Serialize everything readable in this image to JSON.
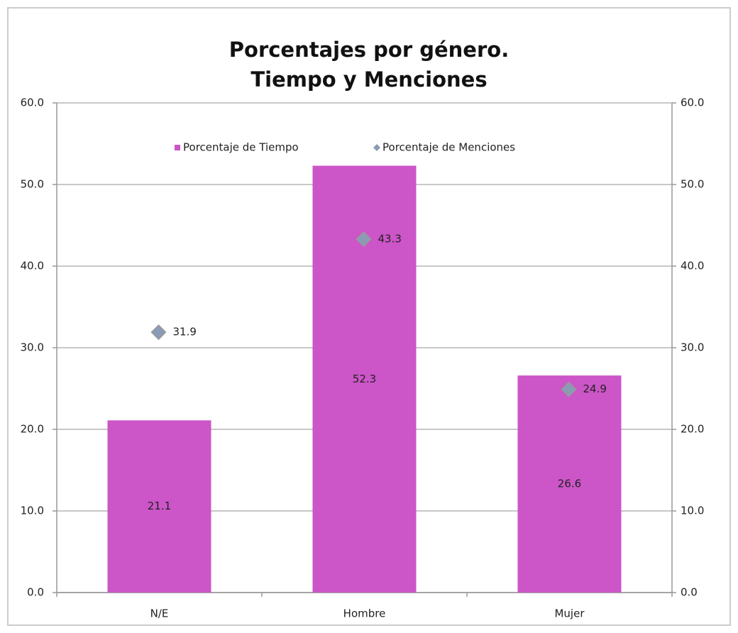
{
  "chart_data": {
    "type": "bar",
    "title": [
      "Porcentajes por género.",
      "Tiempo y Menciones"
    ],
    "categories": [
      "N/E",
      "Hombre",
      "Mujer"
    ],
    "series": [
      {
        "name": "Porcentaje de Tiempo",
        "type": "bar",
        "color": "#cc55c8",
        "values": [
          21.1,
          52.3,
          26.6
        ]
      },
      {
        "name": "Porcentaje de Menciones",
        "type": "scatter",
        "axis": "y2",
        "color": "#8a9bb5",
        "values": [
          31.9,
          43.3,
          24.9
        ]
      }
    ],
    "ylim": [
      0,
      60
    ],
    "yticks": [
      {
        "value": 0,
        "label": "0.0"
      },
      {
        "value": 10,
        "label": "10.0"
      },
      {
        "value": 20,
        "label": "20.0"
      },
      {
        "value": 30,
        "label": "30.0"
      },
      {
        "value": 40,
        "label": "40.0"
      },
      {
        "value": 50,
        "label": "50.0"
      },
      {
        "value": 60,
        "label": "60.0"
      }
    ],
    "y2lim": [
      0,
      60
    ],
    "y2ticks": [
      {
        "value": 0,
        "label": "0.0"
      },
      {
        "value": 10,
        "label": "10.0"
      },
      {
        "value": 20,
        "label": "20.0"
      },
      {
        "value": 30,
        "label": "30.0"
      },
      {
        "value": 40,
        "label": "40.0"
      },
      {
        "value": 50,
        "label": "50.0"
      },
      {
        "value": 60,
        "label": "60.0"
      }
    ],
    "grid": true,
    "legend": "top"
  }
}
